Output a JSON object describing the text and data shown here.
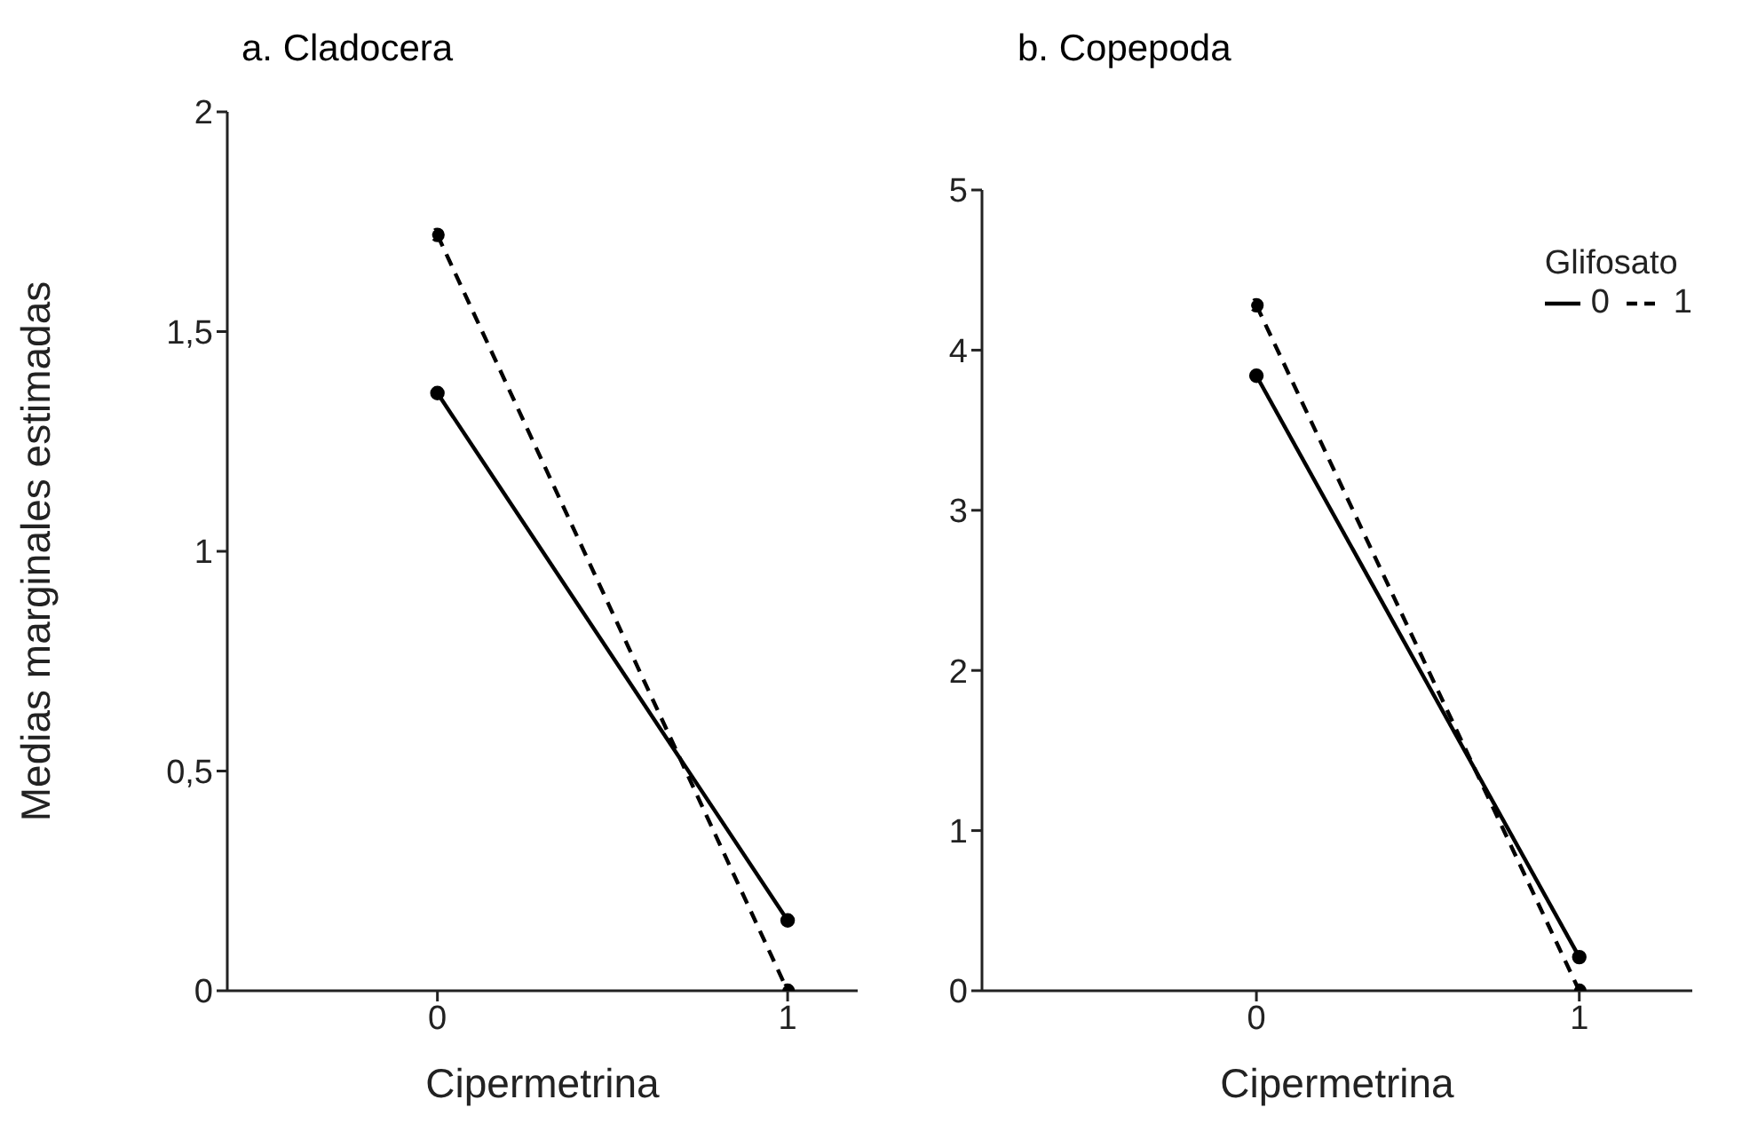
{
  "chart_data": [
    {
      "type": "line",
      "title": "a. Cladocera",
      "xlabel": "Cipermetrina",
      "ylabel": "Medias marginales estimadas",
      "categories": [
        "0",
        "1"
      ],
      "ylim": [
        0,
        2
      ],
      "yticks": [
        0,
        {
          "value": 0.5,
          "label": "0,5"
        },
        1,
        {
          "value": 1.5,
          "label": "1,5"
        },
        2
      ],
      "grid": false,
      "legend": false,
      "marker": "circle",
      "series": [
        {
          "name": "0",
          "color": "#000000",
          "line_style": "solid",
          "values": [
            1.36,
            0.16
          ]
        },
        {
          "name": "1",
          "color": "#000000",
          "line_style": "dashed",
          "values": [
            1.72,
            0
          ]
        }
      ]
    },
    {
      "type": "line",
      "title": "b. Copepoda",
      "xlabel": "Cipermetrina",
      "categories": [
        "0",
        "1"
      ],
      "ylim": [
        0,
        5
      ],
      "yticks": [
        0,
        1,
        2,
        3,
        4,
        5
      ],
      "grid": false,
      "legend": "top right",
      "legend_title": "Glifosato",
      "marker": "circle",
      "series": [
        {
          "name": "0",
          "color": "#000000",
          "line_style": "solid",
          "values": [
            3.84,
            0.21
          ]
        },
        {
          "name": "1",
          "color": "#000000",
          "line_style": "dashed",
          "values": [
            4.28,
            0
          ]
        }
      ]
    }
  ]
}
